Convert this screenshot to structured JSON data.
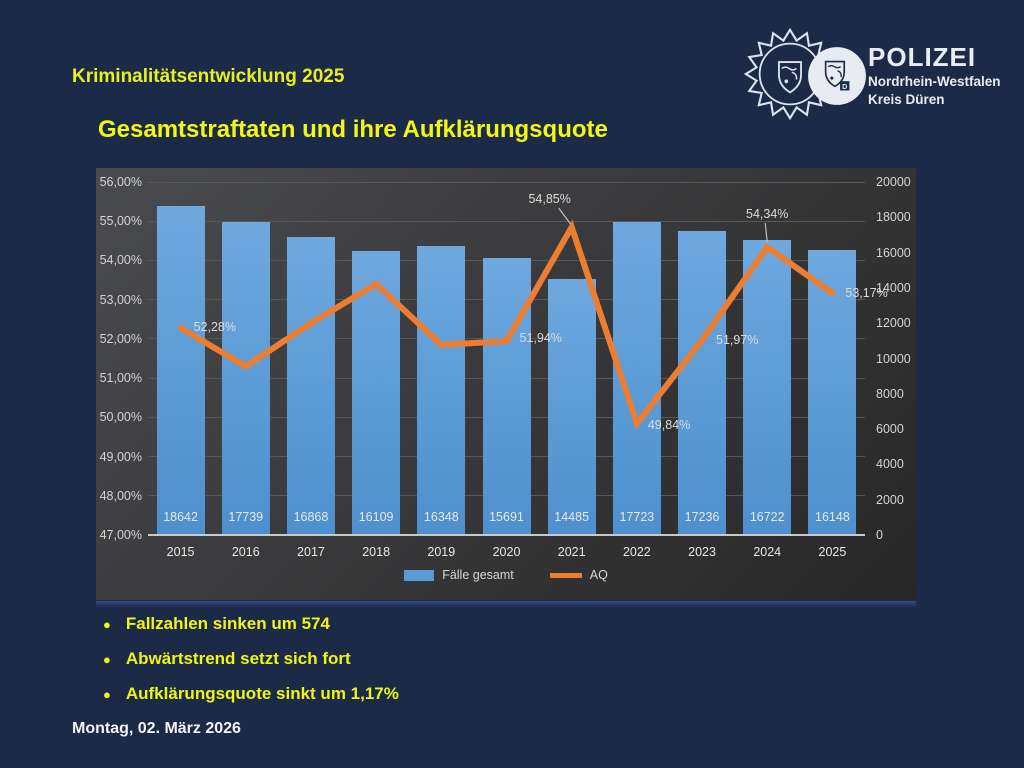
{
  "slide": {
    "header_title": "Kriminalitätsentwicklung 2025",
    "chart_title": "Gesamtstraftaten und ihre Aufklärungsquote",
    "bullets": [
      "Fallzahlen sinken um 574",
      "Abwärtstrend setzt sich fort",
      "Aufklärungsquote sinkt um 1,17%"
    ],
    "footer_date": "Montag, 02. März 2026"
  },
  "logo": {
    "org": "POLIZEI",
    "region": "Nordrhein-Westfalen",
    "district": "Kreis Düren"
  },
  "colors": {
    "background": "#1b2a47",
    "header_yellow": "#e9ef21",
    "title_yellow": "#f4f70f",
    "bar_blue": "#5B9BD5",
    "line_orange": "#ED7D31",
    "chart_bg": "#3a3a3c",
    "axis_text": "#d4d4d4",
    "logo_white": "#e9edf3"
  },
  "chart_data": {
    "type": "bar",
    "subtype": "combo-bar-line",
    "title": "Gesamtstraftaten und ihre Aufklärungsquote",
    "categories": [
      "2015",
      "2016",
      "2017",
      "2018",
      "2019",
      "2020",
      "2021",
      "2022",
      "2023",
      "2024",
      "2025"
    ],
    "series": [
      {
        "name": "Fälle gesamt",
        "type": "bar",
        "axis": "right",
        "color": "#5B9BD5",
        "values": [
          18642,
          17739,
          16868,
          16109,
          16348,
          15691,
          14485,
          17723,
          17236,
          16722,
          16148
        ],
        "bar_labels": [
          "18642",
          "17739",
          "16868",
          "16109",
          "16348",
          "15691",
          "14485",
          "17723",
          "17236",
          "16722",
          "16148"
        ]
      },
      {
        "name": "AQ",
        "type": "line",
        "axis": "left",
        "color": "#ED7D31",
        "values": [
          52.28,
          51.3,
          52.4,
          53.4,
          51.85,
          51.94,
          54.85,
          49.84,
          51.97,
          54.34,
          53.17
        ],
        "point_labels": [
          {
            "i": 0,
            "text": "52,28%",
            "dx": 13,
            "dy": -1
          },
          {
            "i": 5,
            "text": "51,94%",
            "dx": 13,
            "dy": -3
          },
          {
            "i": 6,
            "text": "54,85%",
            "anchor": "center",
            "dx": -22,
            "dy": -28,
            "leader": [
              -13,
              -19,
              -1,
              -3
            ]
          },
          {
            "i": 7,
            "text": "49,84%",
            "dx": 11,
            "dy": 1
          },
          {
            "i": 8,
            "text": "51,97%",
            "dx": 14,
            "dy": 0
          },
          {
            "i": 9,
            "text": "54,34%",
            "anchor": "center",
            "dx": 0,
            "dy": -33,
            "leader": [
              -2,
              -24,
              0,
              -5
            ]
          },
          {
            "i": 10,
            "text": "53,17%",
            "dx": 13,
            "dy": 0
          }
        ]
      }
    ],
    "left_axis": {
      "min": 47,
      "max": 56,
      "step": 1,
      "tick_labels": [
        "56,00%",
        "55,00%",
        "54,00%",
        "53,00%",
        "52,00%",
        "51,00%",
        "50,00%",
        "49,00%",
        "48,00%",
        "47,00%"
      ]
    },
    "right_axis": {
      "min": 0,
      "max": 20000,
      "step": 2000,
      "tick_labels": [
        "20000",
        "18000",
        "16000",
        "14000",
        "12000",
        "10000",
        "8000",
        "6000",
        "4000",
        "2000",
        "0"
      ]
    },
    "legend": [
      {
        "label": "Fälle gesamt",
        "swatch": "rect",
        "color": "#5B9BD5"
      },
      {
        "label": "AQ",
        "swatch": "line",
        "color": "#ED7D31"
      }
    ],
    "grid": true,
    "legend_position": "bottom"
  }
}
